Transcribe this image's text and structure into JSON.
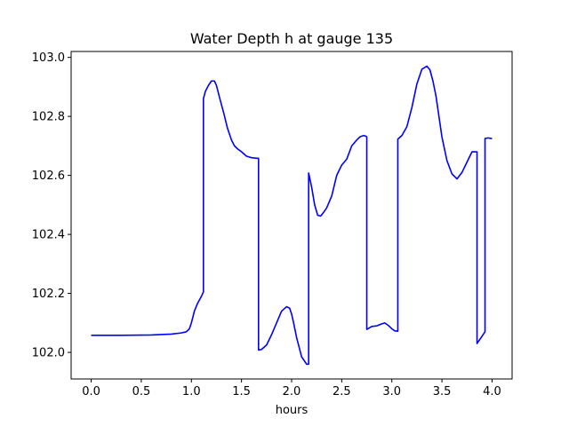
{
  "chart_data": {
    "type": "line",
    "title": "Water Depth h at gauge 135",
    "xlabel": "hours",
    "ylabel": "",
    "xlim": [
      -0.2,
      4.2
    ],
    "ylim": [
      101.91,
      103.02
    ],
    "xticks": [
      0.0,
      0.5,
      1.0,
      1.5,
      2.0,
      2.5,
      3.0,
      3.5,
      4.0
    ],
    "xtick_labels": [
      "0.0",
      "0.5",
      "1.0",
      "1.5",
      "2.0",
      "2.5",
      "3.0",
      "3.5",
      "4.0"
    ],
    "yticks": [
      102.0,
      102.2,
      102.4,
      102.6,
      102.8,
      103.0
    ],
    "ytick_labels": [
      "102.0",
      "102.2",
      "102.4",
      "102.6",
      "102.8",
      "103.0"
    ],
    "grid": false,
    "legend": "none",
    "series": [
      {
        "color": "#0000ff",
        "x": [
          0.0,
          0.3,
          0.6,
          0.8,
          0.9,
          0.95,
          0.98,
          1.0,
          1.03,
          1.06,
          1.1,
          1.12,
          1.12,
          1.14,
          1.17,
          1.2,
          1.23,
          1.25,
          1.28,
          1.32,
          1.36,
          1.4,
          1.43,
          1.46,
          1.5,
          1.55,
          1.6,
          1.65,
          1.67,
          1.67,
          1.7,
          1.75,
          1.8,
          1.85,
          1.9,
          1.95,
          1.98,
          2.0,
          2.02,
          2.05,
          2.1,
          2.15,
          2.17,
          2.17,
          2.2,
          2.23,
          2.26,
          2.29,
          2.32,
          2.35,
          2.4,
          2.45,
          2.5,
          2.55,
          2.6,
          2.65,
          2.68,
          2.7,
          2.72,
          2.74,
          2.75,
          2.75,
          2.8,
          2.85,
          2.9,
          2.93,
          2.97,
          3.0,
          3.03,
          3.06,
          3.06,
          3.1,
          3.15,
          3.2,
          3.25,
          3.3,
          3.35,
          3.38,
          3.41,
          3.44,
          3.47,
          3.5,
          3.55,
          3.6,
          3.65,
          3.7,
          3.75,
          3.8,
          3.85,
          3.85,
          3.9,
          3.93,
          3.93,
          3.96,
          3.99,
          4.0
        ],
        "y": [
          102.058,
          102.058,
          102.059,
          102.062,
          102.066,
          102.07,
          102.08,
          102.1,
          102.14,
          102.165,
          102.19,
          102.205,
          102.86,
          102.885,
          102.905,
          102.92,
          102.92,
          102.905,
          102.865,
          102.815,
          102.76,
          102.72,
          102.7,
          102.69,
          102.68,
          102.665,
          102.66,
          102.658,
          102.658,
          102.008,
          102.01,
          102.025,
          102.06,
          102.1,
          102.14,
          102.155,
          102.15,
          102.13,
          102.1,
          102.05,
          101.985,
          101.96,
          101.96,
          102.608,
          102.56,
          102.5,
          102.465,
          102.462,
          102.475,
          102.49,
          102.53,
          102.6,
          102.635,
          102.655,
          102.7,
          102.72,
          102.73,
          102.733,
          102.735,
          102.733,
          102.73,
          102.078,
          102.088,
          102.09,
          102.097,
          102.1,
          102.09,
          102.08,
          102.073,
          102.072,
          102.723,
          102.735,
          102.765,
          102.83,
          102.91,
          102.96,
          102.97,
          102.958,
          102.92,
          102.87,
          102.8,
          102.73,
          102.65,
          102.605,
          102.588,
          102.61,
          102.645,
          102.68,
          102.68,
          102.03,
          102.055,
          102.07,
          102.725,
          102.727,
          102.725,
          102.725
        ]
      }
    ]
  }
}
